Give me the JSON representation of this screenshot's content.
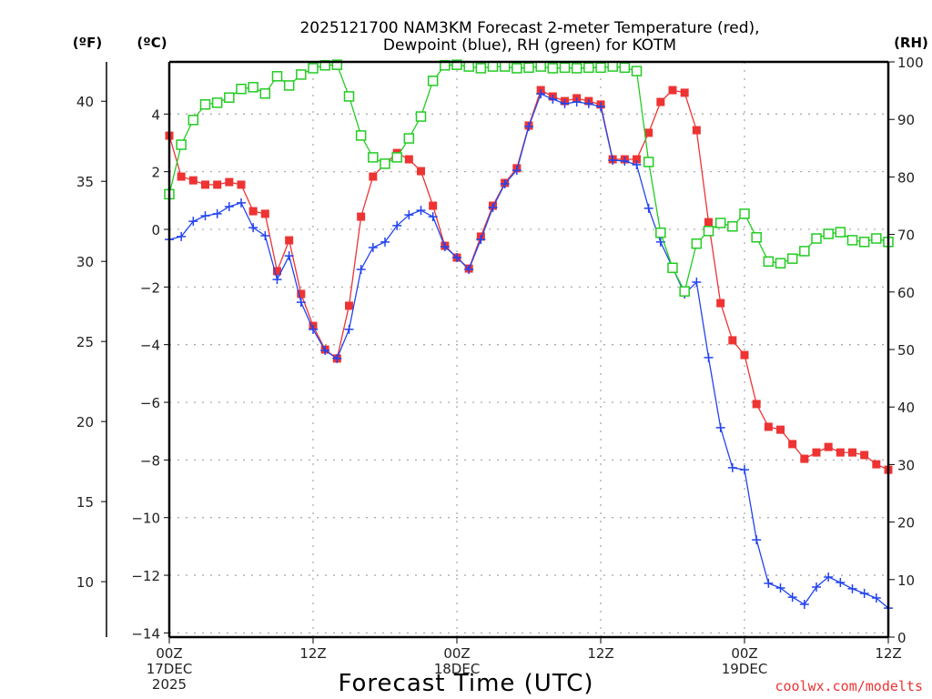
{
  "chart_data": {
    "type": "line",
    "title": [
      "2025121700 NAM3KM Forecast 2-meter Temperature (red),",
      "Dewpoint (blue), RH (green) for KOTM"
    ],
    "xlabel": "Forecast Time (UTC)",
    "x_unit": "forecast hour",
    "x_range": [
      0,
      60
    ],
    "x_ticks": [
      {
        "hour": 0,
        "lines": [
          "00Z",
          "17DEC",
          "2025"
        ]
      },
      {
        "hour": 12,
        "lines": [
          "12Z"
        ]
      },
      {
        "hour": 24,
        "lines": [
          "00Z",
          "18DEC"
        ]
      },
      {
        "hour": 36,
        "lines": [
          "12Z"
        ]
      },
      {
        "hour": 48,
        "lines": [
          "00Z",
          "19DEC"
        ]
      },
      {
        "hour": 60,
        "lines": [
          "12Z"
        ]
      }
    ],
    "axes": {
      "celsius": {
        "label": "(ºC)",
        "range": [
          -14,
          5.8
        ],
        "ticks": [
          4,
          2,
          0,
          -2,
          -4,
          -6,
          -8,
          -10,
          -12,
          -14
        ]
      },
      "fahrenheit": {
        "label": "(ºF)",
        "ticks": [
          40,
          35,
          30,
          25,
          20,
          15,
          10
        ]
      },
      "rh": {
        "label": "(RH)",
        "range": [
          0,
          100
        ],
        "ticks": [
          100,
          90,
          80,
          70,
          60,
          50,
          40,
          30,
          20,
          10,
          0
        ]
      }
    },
    "grid": true,
    "credit": "coolwx.com/modelts",
    "series": [
      {
        "name": "Temperature",
        "axis": "celsius",
        "color": "#ee3333",
        "marker": "filled-square",
        "values": [
          3.25,
          1.83,
          1.7,
          1.55,
          1.55,
          1.64,
          1.55,
          0.63,
          0.54,
          -1.45,
          -0.38,
          -2.24,
          -3.35,
          -4.17,
          -4.48,
          -2.65,
          0.44,
          1.83,
          2.27,
          2.65,
          2.43,
          2.02,
          0.82,
          -0.57,
          -0.98,
          -1.36,
          -0.25,
          0.82,
          1.61,
          2.12,
          3.6,
          4.83,
          4.61,
          4.45,
          4.55,
          4.45,
          4.33,
          2.43,
          2.43,
          2.43,
          3.35,
          4.42,
          4.83,
          4.74,
          3.44,
          0.25,
          -2.56,
          -3.85,
          -4.36,
          -6.06,
          -6.85,
          -6.95,
          -7.45,
          -7.96,
          -7.74,
          -7.55,
          -7.74,
          -7.74,
          -7.83,
          -8.15,
          -8.34
        ]
      },
      {
        "name": "Dewpoint",
        "axis": "celsius",
        "color": "#2244ee",
        "marker": "plus",
        "values": [
          -0.35,
          -0.25,
          0.28,
          0.47,
          0.54,
          0.79,
          0.92,
          0.06,
          -0.22,
          -1.74,
          -0.92,
          -2.53,
          -3.47,
          -4.2,
          -4.48,
          -3.47,
          -1.39,
          -0.63,
          -0.44,
          0.13,
          0.5,
          0.66,
          0.44,
          -0.6,
          -0.98,
          -1.39,
          -0.35,
          0.76,
          1.58,
          2.05,
          3.57,
          4.7,
          4.52,
          4.36,
          4.42,
          4.36,
          4.26,
          2.4,
          2.37,
          2.24,
          0.73,
          -0.44,
          -1.33,
          -2.24,
          -1.83,
          -4.45,
          -6.88,
          -8.27,
          -8.34,
          -10.77,
          -12.28,
          -12.44,
          -12.76,
          -13.01,
          -12.41,
          -12.06,
          -12.25,
          -12.47,
          -12.63,
          -12.79,
          -13.14
        ]
      },
      {
        "name": "RH",
        "axis": "rh",
        "color": "#22cc22",
        "marker": "open-square",
        "values": [
          77,
          85.6,
          89.9,
          92.6,
          92.9,
          93.8,
          95.3,
          95.6,
          94.5,
          97.5,
          95.9,
          97.8,
          98.9,
          99.4,
          99.5,
          94,
          87.2,
          83.4,
          82.3,
          83.4,
          86.7,
          90.5,
          96.7,
          99.4,
          99.5,
          99.2,
          98.9,
          99.2,
          99.2,
          98.9,
          99,
          99.2,
          98.9,
          99,
          98.9,
          99,
          99,
          99.2,
          99,
          98.4,
          82.6,
          70.3,
          64.2,
          60.1,
          68.4,
          70.6,
          72,
          71.4,
          73.6,
          69.5,
          65.3,
          65,
          65.8,
          67.1,
          69.3,
          70.1,
          70.4,
          69,
          68.7,
          69.3,
          68.7
        ]
      }
    ]
  }
}
